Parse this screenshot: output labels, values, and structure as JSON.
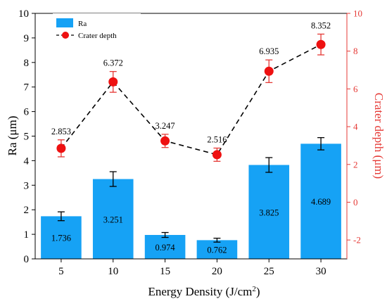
{
  "chart_data": {
    "type": "bar",
    "categories": [
      "5",
      "10",
      "15",
      "20",
      "25",
      "30"
    ],
    "xlabel": "Energy Density (J/cm",
    "xlabel_superscript": "2",
    "xlabel_suffix": ")",
    "ylabel": "Ra (μm)",
    "ylabel_right": "Crater depth (μm)",
    "ylim": [
      0,
      10
    ],
    "ylim_right": [
      -3,
      10
    ],
    "yticks": [
      "0",
      "1",
      "2",
      "3",
      "4",
      "5",
      "6",
      "7",
      "8",
      "9",
      "10"
    ],
    "yticks_right": [
      "-2",
      "0",
      "2",
      "4",
      "6",
      "8",
      "10"
    ],
    "legend_position": "top-left",
    "colors": {
      "bar": "#16a2f5",
      "line": "#000000",
      "marker": "#ee1111",
      "right_axis": "#e53935"
    },
    "series": [
      {
        "name": "Ra",
        "type": "bar",
        "axis": "left",
        "values": [
          1.736,
          3.251,
          0.974,
          0.762,
          3.825,
          4.689
        ],
        "labels": [
          "1.736",
          "3.251",
          "0.974",
          "0.762",
          "3.825",
          "4.689"
        ],
        "errors": [
          0.18,
          0.3,
          0.1,
          0.08,
          0.3,
          0.25
        ]
      },
      {
        "name": "Crater depth",
        "type": "line",
        "axis": "right",
        "values": [
          2.853,
          6.372,
          3.247,
          2.516,
          6.935,
          8.352
        ],
        "labels": [
          "2.853",
          "6.372",
          "3.247",
          "2.516",
          "6.935",
          "8.352"
        ],
        "errors": [
          0.45,
          0.55,
          0.35,
          0.35,
          0.6,
          0.55
        ]
      }
    ]
  }
}
